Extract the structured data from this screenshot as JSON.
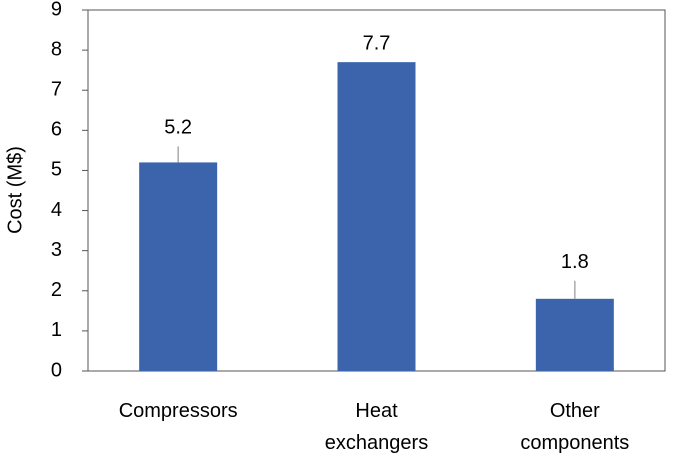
{
  "chart_data": {
    "type": "bar",
    "y_label": "Cost (M$)",
    "categories": [
      "Compressors",
      "Heat exchangers",
      "Other components"
    ],
    "values": [
      5.2,
      7.7,
      1.8
    ],
    "errors": [
      0.4,
      null,
      0.45
    ],
    "color": "#3b64ad",
    "ylim": [
      0,
      9
    ],
    "yticks": [
      0,
      1,
      2,
      3,
      4,
      5,
      6,
      7,
      8,
      9
    ]
  }
}
